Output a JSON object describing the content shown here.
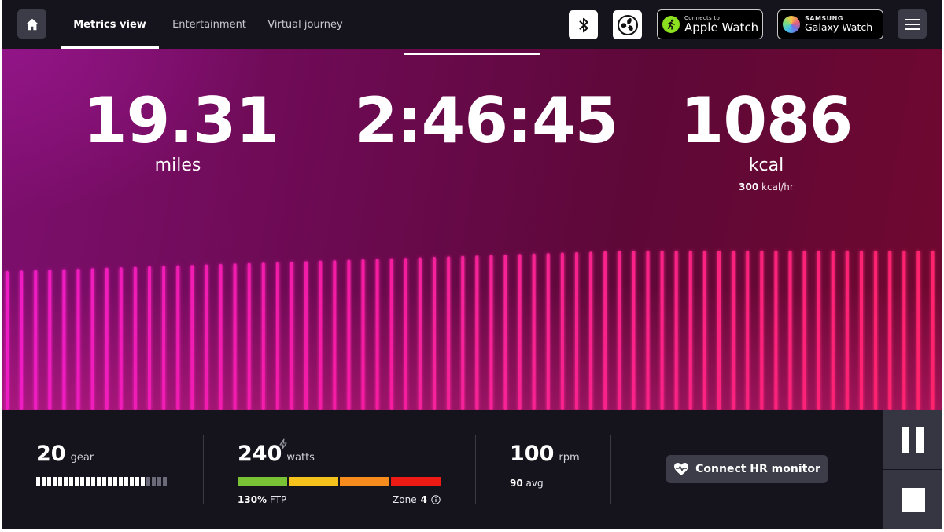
{
  "nav": {
    "tabs": [
      {
        "label": "Metrics view",
        "active": true
      },
      {
        "label": "Entertainment",
        "active": false
      },
      {
        "label": "Virtual journey",
        "active": false
      }
    ]
  },
  "badges": {
    "apple": {
      "small": "Connects to",
      "big": "Apple Watch"
    },
    "samsung": {
      "small": "SAMSUNG",
      "big": "Galaxy Watch"
    }
  },
  "metrics": {
    "distance": {
      "value": "19.31",
      "unit": "miles"
    },
    "time": {
      "value": "2:46:45"
    },
    "calories": {
      "value": "1086",
      "unit": "kcal",
      "rate_value": "300",
      "rate_unit": "kcal/hr"
    }
  },
  "gear": {
    "value": "20",
    "unit": "gear",
    "level_fraction": 0.83
  },
  "power": {
    "value": "240",
    "unit": "watts",
    "ftp_value": "130%",
    "ftp_label": "FTP",
    "zone_label": "Zone",
    "zone_value": "4",
    "zone_colors": [
      "#79c135",
      "#f4c21b",
      "#f68c1e",
      "#ee1a14"
    ]
  },
  "cadence": {
    "value": "100",
    "unit": "rpm",
    "avg_value": "90",
    "avg_label": "avg"
  },
  "hr_button": {
    "label": "Connect HR monitor"
  },
  "colors": {
    "accent_pink": "#ff1f9e",
    "background": "#15141d"
  }
}
